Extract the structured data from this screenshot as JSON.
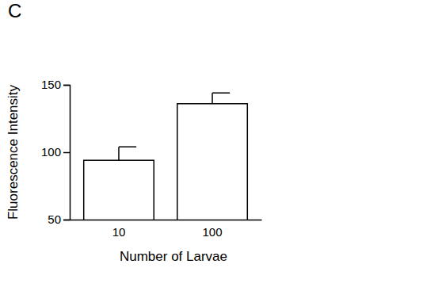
{
  "chart_data": {
    "type": "bar",
    "title": "C",
    "categories": [
      "10",
      "100"
    ],
    "values": [
      94,
      136
    ],
    "errors": [
      10,
      8
    ],
    "color": "#ffffff",
    "x_label": "Number of Larvae",
    "y_label": "Fluorescence Intensity",
    "ylim": [
      50,
      150
    ],
    "yticks": [
      50,
      100,
      150
    ],
    "grid": false
  }
}
